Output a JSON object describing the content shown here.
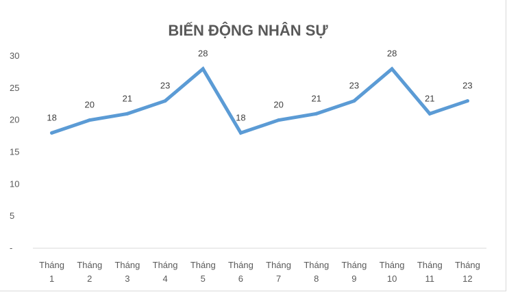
{
  "chart_data": {
    "type": "line",
    "title": "BIẾN ĐỘNG NHÂN SỰ",
    "xlabel": "",
    "ylabel": "",
    "categories": [
      [
        "Tháng",
        "1"
      ],
      [
        "Tháng",
        "2"
      ],
      [
        "Tháng",
        "3"
      ],
      [
        "Tháng",
        "4"
      ],
      [
        "Tháng",
        "5"
      ],
      [
        "Tháng",
        "6"
      ],
      [
        "Tháng",
        "7"
      ],
      [
        "Tháng",
        "8"
      ],
      [
        "Tháng",
        "9"
      ],
      [
        "Tháng",
        "10"
      ],
      [
        "Tháng",
        "11"
      ],
      [
        "Tháng",
        "12"
      ]
    ],
    "series": [
      {
        "values": [
          18,
          20,
          21,
          23,
          28,
          18,
          20,
          21,
          23,
          28,
          21,
          23
        ]
      }
    ],
    "ylim": [
      0,
      30
    ],
    "yticks": [
      0,
      5,
      10,
      15,
      20,
      25,
      30
    ],
    "ytick_labels": [
      "-",
      "5",
      "10",
      "15",
      "20",
      "25",
      "30"
    ],
    "data_labels": [
      "18",
      "20",
      "21",
      "23",
      "28",
      "18",
      "20",
      "21",
      "23",
      "28",
      "21",
      "23"
    ],
    "grid": false,
    "legend": "none",
    "line_color": "#5b9bd5",
    "axis_color": "#d9d9d9"
  }
}
